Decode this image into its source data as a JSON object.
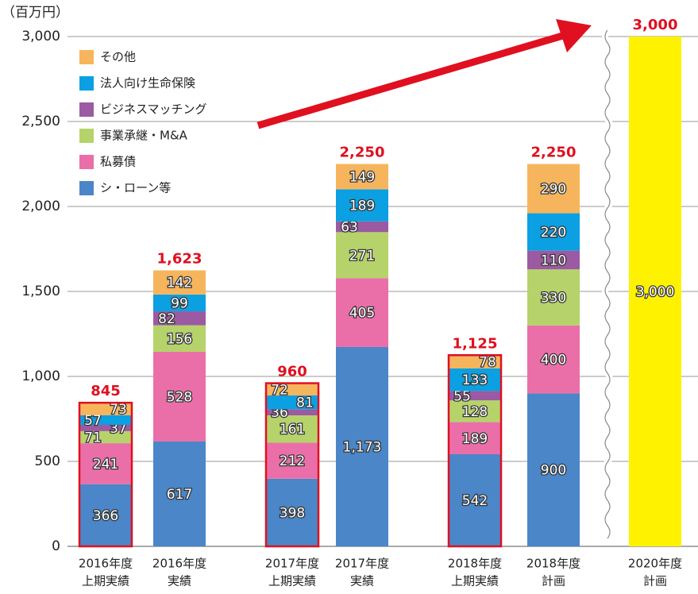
{
  "chart_data": {
    "type": "stacked_bar",
    "y_label": "（百万円）",
    "categories": [
      [
        "2016年度",
        "上期実績"
      ],
      [
        "2016年度",
        "実績"
      ],
      [
        "2017年度",
        "上期実績"
      ],
      [
        "2017年度",
        "実績"
      ],
      [
        "2018年度",
        "上期実績"
      ],
      [
        "2018年度",
        "計画"
      ],
      [
        "2020年度",
        "計画"
      ]
    ],
    "series": [
      {
        "name": "シ・ローン等",
        "color": "#4a86c8",
        "values": [
          366,
          617,
          398,
          1173,
          542,
          900,
          null
        ],
        "value_labels": [
          "366",
          "617",
          "398",
          "1,173",
          "542",
          "900",
          null
        ]
      },
      {
        "name": "私募債",
        "color": "#ea6fa8",
        "values": [
          241,
          528,
          212,
          405,
          189,
          400,
          null
        ]
      },
      {
        "name": "事業承継・M&A",
        "color": "#b5d36a",
        "values": [
          71,
          156,
          161,
          271,
          128,
          330,
          null
        ]
      },
      {
        "name": "ビジネスマッチング",
        "color": "#9b5aa2",
        "values": [
          37,
          82,
          36,
          63,
          55,
          110,
          null
        ]
      },
      {
        "name": "法人向け生命保険",
        "color": "#0aa0e2",
        "values": [
          57,
          99,
          81,
          189,
          133,
          220,
          null
        ]
      },
      {
        "name": "その他",
        "color": "#f6b55c",
        "values": [
          73,
          142,
          72,
          149,
          78,
          290,
          null
        ]
      },
      {
        "color": "#fff200",
        "values": [
          null,
          null,
          null,
          null,
          null,
          null,
          3000
        ],
        "value_labels": [
          null,
          null,
          null,
          null,
          null,
          null,
          "3,000"
        ]
      }
    ],
    "totals": [
      845,
      1623,
      960,
      2250,
      1125,
      2250,
      3000
    ],
    "totals_labels": [
      "845",
      "1,623",
      "960",
      "2,250",
      "1,125",
      "2,250",
      "3,000"
    ],
    "outlined": [
      true,
      false,
      true,
      false,
      true,
      false,
      false
    ],
    "outline_color": "#e01020",
    "ylim": [
      0,
      3000
    ],
    "yticks": [
      0,
      500,
      {
        "value": 1000,
        "label": "1,000"
      },
      {
        "value": 1500,
        "label": "1,500"
      },
      {
        "value": 2000,
        "label": "2,000"
      },
      {
        "value": 2500,
        "label": "2,500"
      },
      {
        "value": 3000,
        "label": "3,000"
      }
    ],
    "grid": true
  }
}
